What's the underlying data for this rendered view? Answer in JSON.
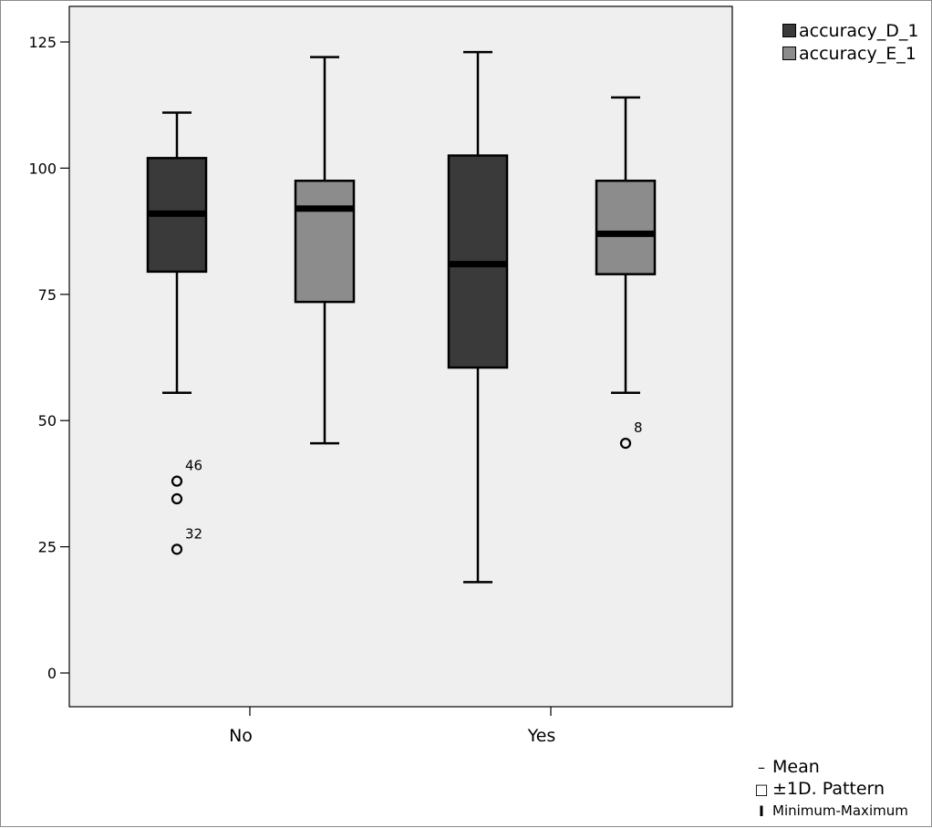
{
  "colors": {
    "background": "#ffffff",
    "plot_background": "#efefef",
    "series_d": "#3a3a3a",
    "series_e": "#8c8c8c",
    "median": "#000000"
  },
  "chart_data": {
    "type": "boxplot",
    "categories": [
      "No",
      "Yes"
    ],
    "y_ticks": [
      0,
      25,
      50,
      75,
      100,
      125
    ],
    "ylim": [
      -7,
      132
    ],
    "grid": false,
    "legend_position": "top-right",
    "series": [
      {
        "name": "accuracy_D_1",
        "color": "#3a3a3a",
        "boxes": [
          {
            "category": "No",
            "min": 55.5,
            "q1": 79.5,
            "median": 91,
            "q3": 102,
            "max": 111,
            "outliers": [
              {
                "value": 38,
                "label": "46"
              },
              {
                "value": 34.5,
                "label": ""
              },
              {
                "value": 24.5,
                "label": "32"
              }
            ]
          },
          {
            "category": "Yes",
            "min": 18,
            "q1": 60.5,
            "median": 81,
            "q3": 102.5,
            "max": 123,
            "outliers": []
          }
        ]
      },
      {
        "name": "accuracy_E_1",
        "color": "#8c8c8c",
        "boxes": [
          {
            "category": "No",
            "min": 45.5,
            "q1": 73.5,
            "median": 92,
            "q3": 97.5,
            "max": 122,
            "outliers": []
          },
          {
            "category": "Yes",
            "min": 55.5,
            "q1": 79,
            "median": 87,
            "q3": 97.5,
            "max": 114,
            "outliers": [
              {
                "value": 45.5,
                "label": "8"
              }
            ]
          }
        ]
      }
    ],
    "stat_legend": [
      {
        "symbol": "–",
        "label": "Mean"
      },
      {
        "symbol": "□",
        "label": "±1D. Pattern"
      },
      {
        "symbol": "I",
        "label": "Minimum-Maximum"
      }
    ]
  }
}
